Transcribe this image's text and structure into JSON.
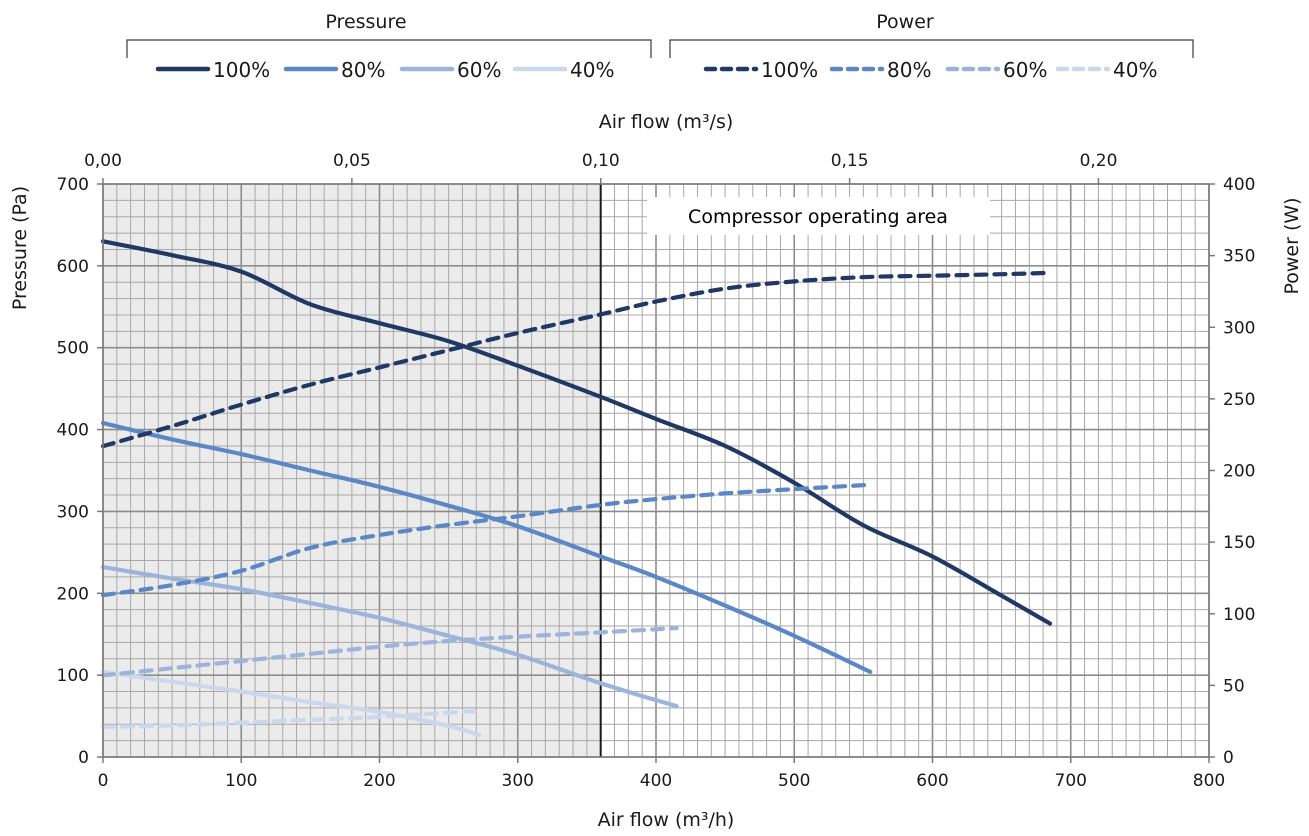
{
  "chart_data": {
    "type": "line",
    "xlabel_bottom": "Air flow (m³/h)",
    "xlabel_top": "Air flow (m³/s)",
    "ylabel_left": "Pressure (Pa)",
    "ylabel_right": "Power (W)",
    "xlim": [
      0,
      800
    ],
    "x_top_lim": [
      0,
      0.2222
    ],
    "ylim_left": [
      0,
      700
    ],
    "ylim_right": [
      0,
      400
    ],
    "x_ticks": [
      "0",
      "100",
      "200",
      "300",
      "400",
      "500",
      "600",
      "700",
      "800"
    ],
    "x_tick_values": [
      0,
      100,
      200,
      300,
      400,
      500,
      600,
      700,
      800
    ],
    "x_top_ticks": [
      "0,00",
      "0,05",
      "0,10",
      "0,15",
      "0,20"
    ],
    "x_top_tick_values": [
      0,
      0.05,
      0.1,
      0.15,
      0.2
    ],
    "y_left_ticks": [
      "0",
      "100",
      "200",
      "300",
      "400",
      "500",
      "600",
      "700"
    ],
    "y_left_tick_values": [
      0,
      100,
      200,
      300,
      400,
      500,
      600,
      700
    ],
    "y_right_ticks": [
      "0",
      "50",
      "100",
      "150",
      "200",
      "250",
      "300",
      "350",
      "400"
    ],
    "y_right_tick_values": [
      0,
      50,
      100,
      150,
      200,
      250,
      300,
      350,
      400
    ],
    "grid": true,
    "shaded_region": {
      "x_from": 0,
      "x_to": 360,
      "color": "#ebebeb"
    },
    "divider_x": 360,
    "annotation": "Compressor operating area",
    "legend": {
      "placement": "top",
      "groups": [
        {
          "title": "Pressure",
          "style": "solid",
          "entries": [
            "100%",
            "80%",
            "60%",
            "40%"
          ]
        },
        {
          "title": "Power",
          "style": "dashed",
          "entries": [
            "100%",
            "80%",
            "60%",
            "40%"
          ]
        }
      ]
    },
    "colors": {
      "100%": "#203864",
      "80%": "#5b87c6",
      "60%": "#9db4da",
      "40%": "#cbd8ec"
    },
    "series": [
      {
        "name": "100%",
        "group": "Pressure",
        "axis": "left",
        "style": "solid",
        "x": [
          0,
          50,
          100,
          150,
          200,
          250,
          300,
          360,
          400,
          450,
          500,
          550,
          600,
          650,
          685
        ],
        "y": [
          630,
          613,
          593,
          553,
          530,
          508,
          478,
          440,
          413,
          380,
          335,
          283,
          245,
          197,
          163
        ]
      },
      {
        "name": "80%",
        "group": "Pressure",
        "axis": "left",
        "style": "solid",
        "x": [
          0,
          50,
          100,
          150,
          200,
          250,
          300,
          360,
          400,
          450,
          500,
          555
        ],
        "y": [
          408,
          388,
          370,
          350,
          330,
          307,
          282,
          245,
          220,
          185,
          148,
          104
        ]
      },
      {
        "name": "60%",
        "group": "Pressure",
        "axis": "left",
        "style": "solid",
        "x": [
          0,
          50,
          100,
          150,
          200,
          250,
          300,
          360,
          415
        ],
        "y": [
          232,
          218,
          205,
          188,
          170,
          148,
          125,
          90,
          62
        ]
      },
      {
        "name": "40%",
        "group": "Pressure",
        "axis": "left",
        "style": "solid",
        "x": [
          0,
          50,
          100,
          150,
          200,
          250,
          272
        ],
        "y": [
          104,
          92,
          80,
          67,
          55,
          38,
          27
        ]
      },
      {
        "name": "100%",
        "group": "Power",
        "axis": "right",
        "style": "dashed",
        "x": [
          0,
          50,
          100,
          150,
          200,
          250,
          300,
          360,
          400,
          450,
          500,
          550,
          600,
          650,
          685
        ],
        "y": [
          217,
          231,
          246,
          260,
          272,
          284,
          296,
          309,
          318,
          327,
          332,
          335,
          336,
          337,
          338
        ]
      },
      {
        "name": "80%",
        "group": "Power",
        "axis": "right",
        "style": "dashed",
        "x": [
          0,
          50,
          100,
          150,
          200,
          250,
          300,
          360,
          400,
          450,
          500,
          555
        ],
        "y": [
          113,
          120,
          130,
          146,
          155,
          162,
          168,
          176,
          180,
          184,
          187,
          190
        ]
      },
      {
        "name": "60%",
        "group": "Power",
        "axis": "right",
        "style": "dashed",
        "x": [
          0,
          50,
          100,
          150,
          200,
          250,
          300,
          360,
          415
        ],
        "y": [
          57,
          62,
          67,
          72,
          77,
          81,
          84,
          87,
          90
        ]
      },
      {
        "name": "40%",
        "group": "Power",
        "axis": "right",
        "style": "dashed",
        "x": [
          0,
          50,
          100,
          150,
          200,
          250,
          272
        ],
        "y": [
          21,
          22,
          24,
          26,
          28,
          31,
          32
        ]
      }
    ]
  }
}
